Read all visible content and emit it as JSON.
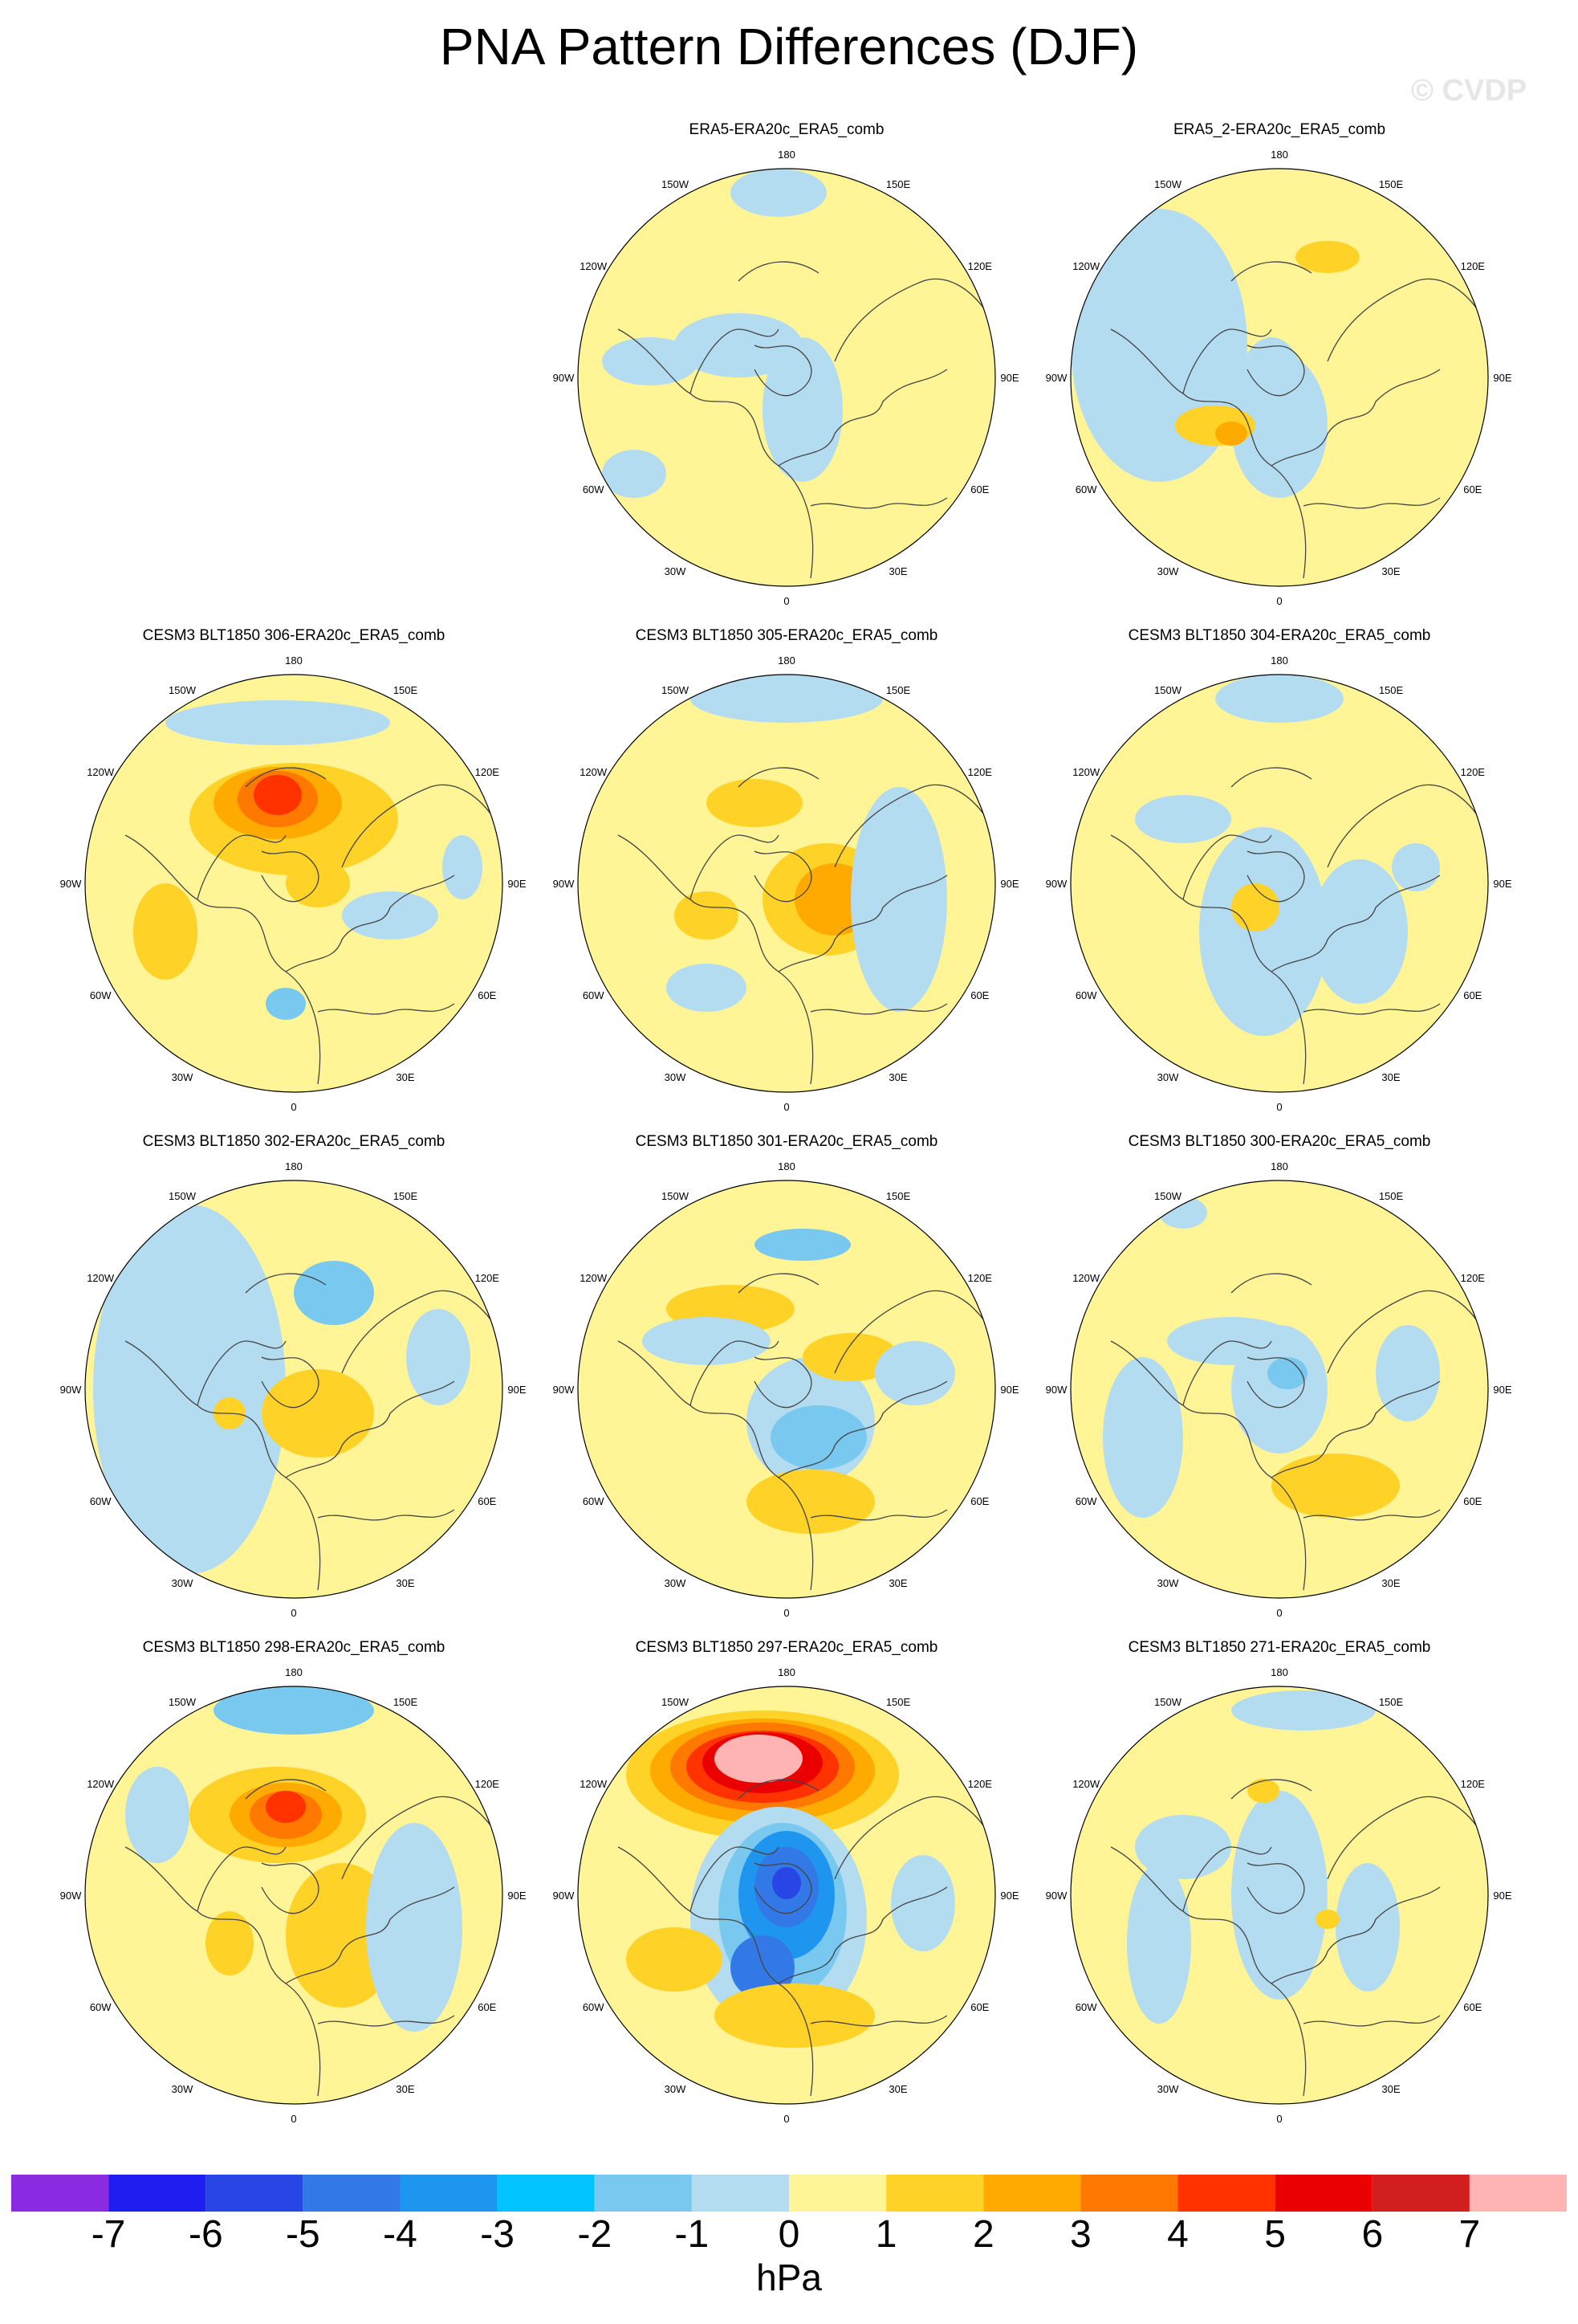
{
  "figure": {
    "title": "PNA Pattern Differences (DJF)",
    "watermark": "© CVDP",
    "units": "hPa"
  },
  "colorbar": {
    "tick_labels": [
      "-7",
      "-6",
      "-5",
      "-4",
      "-3",
      "-2",
      "-1",
      "0",
      "1",
      "2",
      "3",
      "4",
      "5",
      "6",
      "7"
    ],
    "colors": [
      "#8a2be2",
      "#1e1ef0",
      "#2846e6",
      "#3278e6",
      "#1e96f0",
      "#00c3ff",
      "#78c8f0",
      "#b4dcf0",
      "#fff596",
      "#ffd228",
      "#ffaa00",
      "#ff7800",
      "#ff3200",
      "#eb0000",
      "#d21e1e",
      "#ffb4b4"
    ]
  },
  "map_labels": {
    "lon": [
      "180",
      "150E",
      "120E",
      "90E",
      "60E",
      "30E",
      "0",
      "30W",
      "60W",
      "90W",
      "120W",
      "150W"
    ]
  },
  "chart_data": {
    "type": "heatmap",
    "description_units": "hPa",
    "panels": [
      {
        "id": "p0",
        "title": "",
        "empty": true
      },
      {
        "id": "p1",
        "title": "ERA5-ERA20c_ERA5_comb",
        "empty": false
      },
      {
        "id": "p2",
        "title": "ERA5_2-ERA20c_ERA5_comb",
        "empty": false
      },
      {
        "id": "p3",
        "title": "CESM3 BLT1850 306-ERA20c_ERA5_comb",
        "empty": false
      },
      {
        "id": "p4",
        "title": "CESM3 BLT1850 305-ERA20c_ERA5_comb",
        "empty": false
      },
      {
        "id": "p5",
        "title": "CESM3 BLT1850 304-ERA20c_ERA5_comb",
        "empty": false
      },
      {
        "id": "p6",
        "title": "CESM3 BLT1850 302-ERA20c_ERA5_comb",
        "empty": false
      },
      {
        "id": "p7",
        "title": "CESM3 BLT1850 301-ERA20c_ERA5_comb",
        "empty": false
      },
      {
        "id": "p8",
        "title": "CESM3 BLT1850 300-ERA20c_ERA5_comb",
        "empty": false
      },
      {
        "id": "p9",
        "title": "CESM3 BLT1850 298-ERA20c_ERA5_comb",
        "empty": false
      },
      {
        "id": "p10",
        "title": "CESM3 BLT1850 297-ERA20c_ERA5_comb",
        "empty": false
      },
      {
        "id": "p11",
        "title": "CESM3 BLT1850 271-ERA20c_ERA5_comb",
        "empty": false
      }
    ]
  }
}
